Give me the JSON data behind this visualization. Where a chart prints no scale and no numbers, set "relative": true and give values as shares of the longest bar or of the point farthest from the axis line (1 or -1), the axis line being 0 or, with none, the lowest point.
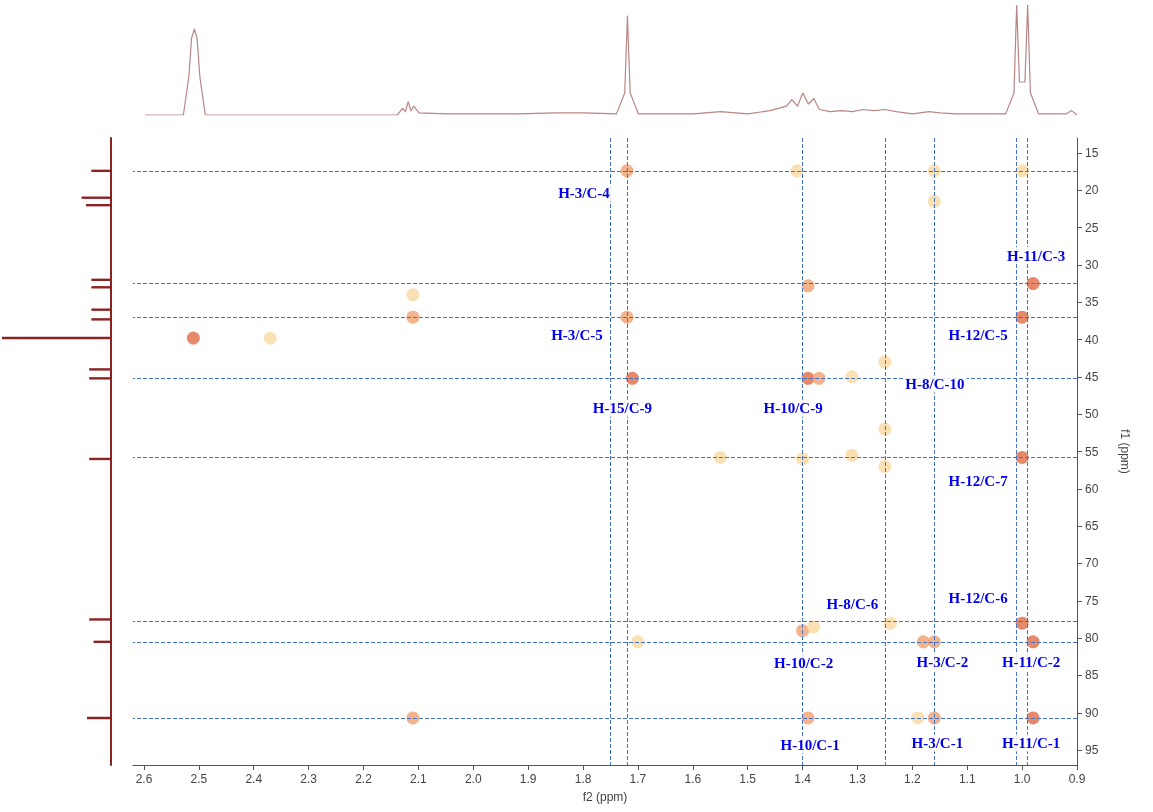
{
  "chart_data": [
    {
      "type": "line",
      "relative": true,
      "tick_labels": false,
      "xlim": [
        2.6,
        0.9
      ],
      "xticks": [
        2.6,
        2.5,
        2.4,
        2.3,
        2.2,
        2.1,
        1.9,
        1.8,
        1.7,
        1.6,
        1.5,
        1.4,
        1.3,
        1.2,
        1.1,
        0.9
      ],
      "series": [
        {
          "color": "#b98585",
          "x": [
            2.6,
            2.53,
            2.52,
            2.515,
            2.51,
            2.505,
            2.5,
            2.49,
            2.14,
            2.13,
            2.125,
            2.12,
            2.115,
            2.11,
            2.1,
            2.05,
            1.92,
            1.85,
            1.8,
            1.74,
            1.725,
            1.72,
            1.715,
            1.7,
            1.6,
            1.55,
            1.5,
            1.46,
            1.43,
            1.42,
            1.41,
            1.4,
            1.39,
            1.38,
            1.37,
            1.35,
            1.33,
            1.31,
            1.29,
            1.27,
            1.25,
            1.23,
            1.2,
            1.17,
            1.15,
            1.12,
            1.03,
            1.015,
            1.01,
            1.005,
            0.995,
            0.99,
            0.985,
            0.97,
            0.92,
            0.91,
            0.9
          ],
          "values": [
            0,
            0,
            0.35,
            0.7,
            0.78,
            0.7,
            0.35,
            0,
            0,
            0.06,
            0.03,
            0.12,
            0.04,
            0.08,
            0.02,
            0.01,
            0.01,
            0.02,
            0.02,
            0.01,
            0.2,
            0.9,
            0.2,
            0.01,
            0.01,
            0.03,
            0.01,
            0.04,
            0.08,
            0.14,
            0.08,
            0.2,
            0.1,
            0.15,
            0.05,
            0.03,
            0.04,
            0.03,
            0.05,
            0.04,
            0.05,
            0.03,
            0.01,
            0.03,
            0.02,
            0.01,
            0.01,
            0.2,
            1,
            0.3,
            0.3,
            1,
            0.2,
            0.01,
            0.01,
            0.04,
            0
          ]
        }
      ]
    },
    {
      "type": "bar",
      "orientation": "horizontal",
      "relative": true,
      "ylim": [
        97,
        13
      ],
      "color": "#8b2323",
      "x": [
        17.4,
        21,
        22,
        32,
        33,
        36,
        37.3,
        39.8,
        44,
        45.2,
        56,
        77.5,
        80.5,
        90.7
      ],
      "values": [
        0.18,
        0.27,
        0.23,
        0.18,
        0.18,
        0.18,
        0.18,
        1,
        0.2,
        0.2,
        0.2,
        0.2,
        0.16,
        0.22
      ]
    },
    {
      "type": "scatter",
      "xlabel": "f2 (ppm)",
      "ylabel": "f1 (ppm)",
      "marker": "circle",
      "grid": false,
      "xlim": [
        2.62,
        0.9
      ],
      "xticks": [
        2.6,
        2.5,
        2.4,
        2.3,
        2.2,
        2.1,
        {
          "value": 2,
          "label": "2.0"
        },
        1.9,
        1.8,
        1.7,
        1.6,
        1.5,
        1.4,
        1.3,
        1.2,
        1.1,
        {
          "value": 1,
          "label": "1.0"
        },
        0.9
      ],
      "ylim": [
        97,
        13
      ],
      "yticks": [
        15,
        20,
        25,
        30,
        35,
        40,
        45,
        50,
        55,
        60,
        65,
        70,
        75,
        80,
        85,
        90,
        95
      ],
      "x": [
        1.72,
        1.41,
        1.16,
        1.0,
        1.16,
        1.72,
        2.11,
        2.11,
        2.51,
        2.37,
        1.71,
        1.39,
        1.37,
        1.31,
        1.25,
        0.98,
        1.39,
        1.0,
        1.0,
        1.4,
        1.31,
        1.25,
        1.55,
        1.25,
        1.0,
        1.24,
        1.4,
        1.38,
        1.7,
        0.98,
        1.16,
        1.18,
        0.98,
        1.16,
        1.19,
        1.39,
        2.11
      ],
      "values": [
        17.4,
        17.4,
        17.4,
        17.4,
        21.5,
        37,
        37,
        34,
        39.8,
        39.8,
        45.2,
        45.2,
        45.2,
        45,
        43,
        32.5,
        32.8,
        37,
        55.8,
        56,
        55.5,
        57,
        55.8,
        52,
        78,
        78,
        79,
        78.5,
        80.5,
        80.5,
        80.5,
        80.5,
        90.7,
        90.7,
        90.7,
        90.7,
        90.7
      ],
      "colors": [
        "#f0a070",
        "#f8d9a0",
        "#f8d9a0",
        "#f8d9a0",
        "#f8d9a0",
        "#f0a070",
        "#f0a070",
        "#f8d9a0",
        "#e06a45",
        "#f8d9a0",
        "#e06a45",
        "#e06a45",
        "#f0a070",
        "#f8d9a0",
        "#f8d9a0",
        "#e06a45",
        "#f0a070",
        "#e06a45",
        "#e06a45",
        "#f8d9a0",
        "#f8d9a0",
        "#f8d9a0",
        "#f8d9a0",
        "#f8d9a0",
        "#e06a45",
        "#f8d9a0",
        "#f0a070",
        "#f8d9a0",
        "#f8d9a0",
        "#e06a45",
        "#f0a070",
        "#f0a070",
        "#e06a45",
        "#f0a070",
        "#f8d9a0",
        "#f0a070",
        "#f0a070"
      ],
      "ref_lines": [
        {
          "axis": "x",
          "value": 1.745,
          "color": "#4472c4",
          "line_style": "dashed"
        },
        {
          "axis": "x",
          "value": 1.722,
          "color": "#4472c4",
          "line_style": "dashed"
        },
        {
          "axis": "x",
          "value": 1.4,
          "color": "#4472c4",
          "line_style": "dashed"
        },
        {
          "axis": "x",
          "value": 1.246,
          "color": "#4472c4",
          "line_style": "dashed"
        },
        {
          "axis": "x",
          "value": 1.164,
          "color": "#4472c4",
          "line_style": "dashed"
        },
        {
          "axis": "x",
          "value": 1.011,
          "color": "#4472c4",
          "line_style": "dashed"
        },
        {
          "axis": "x",
          "value": 0.993,
          "color": "#4472c4",
          "line_style": "dashed"
        },
        {
          "axis": "y",
          "value": 17.4,
          "color": "#4472c4",
          "line_style": "dashed"
        },
        {
          "axis": "y",
          "value": 32.5,
          "color": "#4472c4",
          "line_style": "dashed"
        },
        {
          "axis": "y",
          "value": 37,
          "color": "#4472c4",
          "line_style": "dashed"
        },
        {
          "axis": "y",
          "value": 45.2,
          "color": "#4472c4",
          "line_style": "dashed"
        },
        {
          "axis": "y",
          "value": 55.8,
          "color": "#4472c4",
          "line_style": "dashed"
        },
        {
          "axis": "y",
          "value": 77.8,
          "color": "#4472c4",
          "line_style": "dashed"
        },
        {
          "axis": "y",
          "value": 80.5,
          "color": "#4472c4",
          "line_style": "dashed"
        },
        {
          "axis": "y",
          "value": 90.7,
          "color": "#4472c4",
          "line_style": "dashed"
        }
      ],
      "annotations": [
        {
          "text": "H-3/C-4",
          "x": 1.72,
          "y": 17.4
        },
        {
          "text": "H-3/C-5",
          "x": 1.72,
          "y": 37
        },
        {
          "text": "H-15/C-9",
          "x": 1.71,
          "y": 45.2
        },
        {
          "text": "H-10/C-9",
          "x": 1.39,
          "y": 45.2
        },
        {
          "text": "H-8/C-10",
          "x": 1.25,
          "y": 43
        },
        {
          "text": "H-11/C-3",
          "x": 0.98,
          "y": 32.5
        },
        {
          "text": "H-12/C-5",
          "x": 1.0,
          "y": 37
        },
        {
          "text": "H-12/C-7",
          "x": 1.0,
          "y": 55.8
        },
        {
          "text": "H-8/C-6",
          "x": 1.24,
          "y": 78
        },
        {
          "text": "H-12/C-6",
          "x": 1.0,
          "y": 78
        },
        {
          "text": "H-10/C-2",
          "x": 1.4,
          "y": 79
        },
        {
          "text": "H-3/C-2",
          "x": 1.16,
          "y": 80.5
        },
        {
          "text": "H-11/C-2",
          "x": 0.98,
          "y": 80.5
        },
        {
          "text": "H-10/C-1",
          "x": 1.39,
          "y": 90.7
        },
        {
          "text": "H-3/C-1",
          "x": 1.16,
          "y": 90.7
        },
        {
          "text": "H-11/C-1",
          "x": 0.98,
          "y": 90.7
        }
      ]
    }
  ]
}
